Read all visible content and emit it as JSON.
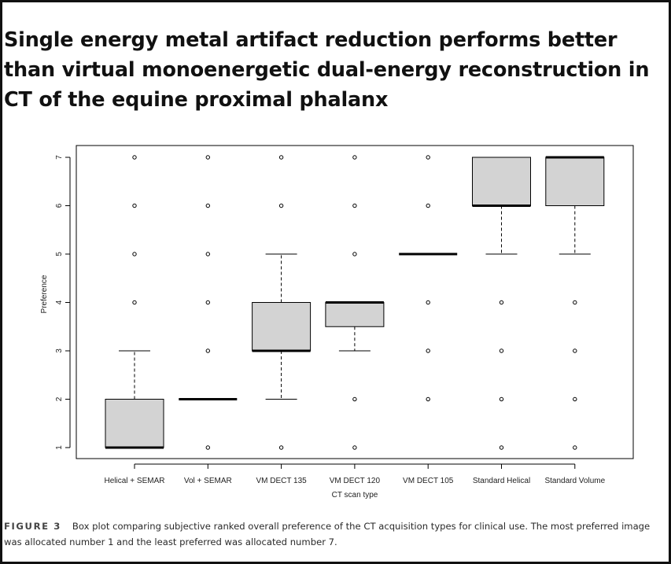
{
  "title": "Single energy metal artifact reduction performs better than virtual monoenergetic dual-energy reconstruction in CT of the equine proximal phalanx",
  "caption": {
    "label": "FIGURE 3",
    "text": "Box plot comparing subjective ranked overall preference of the CT acquisition types for clinical use. The most preferred image was allocated number 1 and the least preferred was allocated number 7."
  },
  "colors": {
    "box_fill": "#d3d3d3",
    "line": "#000000"
  },
  "chart_data": {
    "type": "boxplot",
    "xlabel": "CT scan type",
    "ylabel": "Preference",
    "ylim": [
      1,
      7
    ],
    "yticks": [
      "1",
      "2",
      "3",
      "4",
      "5",
      "6",
      "7"
    ],
    "grid": false,
    "categories": [
      "Helical + SEMAR",
      "Vol + SEMAR",
      "VM DECT 135",
      "VM DECT 120",
      "VM DECT 105",
      "Standard Helical",
      "Standard Volume"
    ],
    "boxes": [
      {
        "q1": 1,
        "median": 1,
        "q3": 2,
        "whisker_low": 1,
        "whisker_high": 3,
        "outliers": [
          4,
          5,
          6,
          7
        ]
      },
      {
        "q1": 2,
        "median": 2,
        "q3": 2,
        "whisker_low": 2,
        "whisker_high": 2,
        "outliers": [
          1,
          3,
          4,
          5,
          6,
          7
        ]
      },
      {
        "q1": 3,
        "median": 3,
        "q3": 4,
        "whisker_low": 2,
        "whisker_high": 5,
        "outliers": [
          1,
          6,
          7
        ]
      },
      {
        "q1": 3.5,
        "median": 4,
        "q3": 4,
        "whisker_low": 3,
        "whisker_high": 4,
        "outliers": [
          1,
          2,
          5,
          6,
          7
        ]
      },
      {
        "q1": 5,
        "median": 5,
        "q3": 5,
        "whisker_low": 5,
        "whisker_high": 5,
        "outliers": [
          2,
          3,
          4,
          6,
          7
        ]
      },
      {
        "q1": 6,
        "median": 6,
        "q3": 7,
        "whisker_low": 5,
        "whisker_high": 7,
        "outliers": [
          1,
          2,
          3,
          4
        ]
      },
      {
        "q1": 6,
        "median": 7,
        "q3": 7,
        "whisker_low": 5,
        "whisker_high": 7,
        "outliers": [
          1,
          2,
          3,
          4
        ]
      }
    ]
  }
}
